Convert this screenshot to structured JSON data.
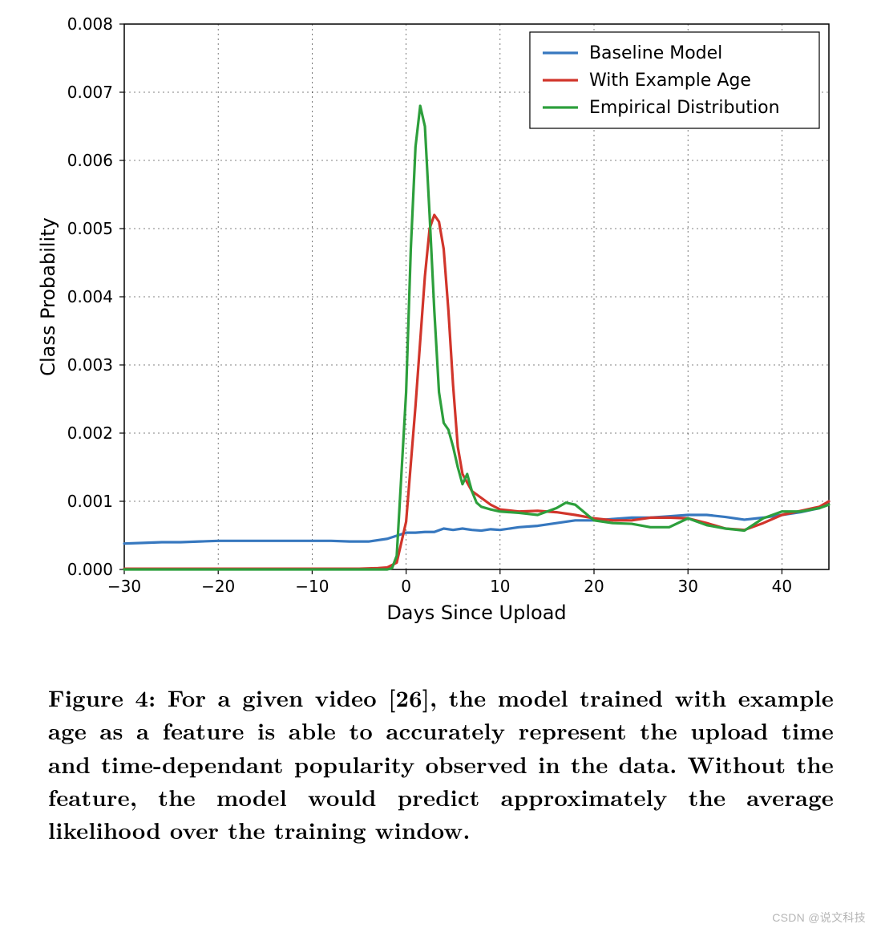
{
  "chart": {
    "type": "line",
    "background_color": "#ffffff",
    "plot_background": "#ffffff",
    "axis_color": "#000000",
    "grid_color": "#000000",
    "grid_dash": "2,4",
    "tick_length": 6,
    "xlabel": "Days Since Upload",
    "ylabel": "Class Probability",
    "label_fontsize": 24,
    "tick_fontsize": 20,
    "xlim": [
      -30,
      45
    ],
    "ylim": [
      0,
      0.008
    ],
    "xticks": [
      -30,
      -20,
      -10,
      0,
      10,
      20,
      30,
      40
    ],
    "yticks": [
      0.0,
      0.001,
      0.002,
      0.003,
      0.004,
      0.005,
      0.006,
      0.007,
      0.008
    ],
    "ytick_labels": [
      "0.000",
      "0.001",
      "0.002",
      "0.003",
      "0.004",
      "0.005",
      "0.006",
      "0.007",
      "0.008"
    ],
    "line_width": 3.2,
    "legend": {
      "position": "upper-right",
      "fontsize": 22,
      "frame_color": "#000000",
      "background": "#ffffff",
      "line_length": 44,
      "items": [
        {
          "label": "Baseline Model",
          "color": "#3778bf"
        },
        {
          "label": "With Example Age",
          "color": "#d1352b"
        },
        {
          "label": "Empirical Distribution",
          "color": "#2d9f3c"
        }
      ]
    },
    "series": [
      {
        "name": "Baseline Model",
        "color": "#3778bf",
        "x": [
          -30,
          -28,
          -26,
          -24,
          -22,
          -20,
          -18,
          -16,
          -14,
          -12,
          -10,
          -8,
          -6,
          -4,
          -2,
          0,
          1,
          2,
          3,
          4,
          5,
          6,
          7,
          8,
          9,
          10,
          12,
          14,
          16,
          18,
          20,
          22,
          24,
          26,
          28,
          30,
          32,
          34,
          36,
          38,
          40,
          42,
          44,
          45
        ],
        "y": [
          0.00038,
          0.00039,
          0.0004,
          0.0004,
          0.00041,
          0.00042,
          0.00042,
          0.00042,
          0.00042,
          0.00042,
          0.00042,
          0.00042,
          0.00041,
          0.00041,
          0.00045,
          0.00054,
          0.00054,
          0.00055,
          0.00055,
          0.0006,
          0.00058,
          0.0006,
          0.00058,
          0.00057,
          0.00059,
          0.00058,
          0.00062,
          0.00064,
          0.00068,
          0.00072,
          0.00072,
          0.00074,
          0.00076,
          0.00076,
          0.00078,
          0.0008,
          0.0008,
          0.00077,
          0.00073,
          0.00076,
          0.0008,
          0.00084,
          0.0009,
          0.001
        ]
      },
      {
        "name": "With Example Age",
        "color": "#d1352b",
        "x": [
          -30,
          -10,
          -5,
          -3,
          -2,
          -1,
          0,
          1,
          2,
          2.5,
          3,
          3.5,
          4,
          4.5,
          5,
          5.5,
          6,
          7,
          8,
          9,
          10,
          12,
          14,
          16,
          18,
          20,
          22,
          24,
          26,
          28,
          30,
          32,
          34,
          36,
          38,
          40,
          42,
          44,
          45
        ],
        "y": [
          1e-05,
          1e-05,
          1e-05,
          2e-05,
          3e-05,
          0.0001,
          0.0007,
          0.0024,
          0.0043,
          0.005,
          0.0052,
          0.0051,
          0.0047,
          0.0038,
          0.0027,
          0.0018,
          0.0014,
          0.00115,
          0.00105,
          0.00095,
          0.00088,
          0.00085,
          0.00086,
          0.00084,
          0.0008,
          0.00075,
          0.00072,
          0.00072,
          0.00076,
          0.00076,
          0.00075,
          0.00068,
          0.0006,
          0.00058,
          0.00068,
          0.0008,
          0.00086,
          0.00092,
          0.001
        ]
      },
      {
        "name": "Empirical Distribution",
        "color": "#2d9f3c",
        "x": [
          -30,
          -10,
          -5,
          -3,
          -2,
          -1.5,
          -1,
          0,
          0.5,
          1,
          1.5,
          2,
          2.5,
          3,
          3.5,
          4,
          4.5,
          5,
          5.5,
          6,
          6.5,
          7,
          7.5,
          8,
          9,
          10,
          12,
          14,
          16,
          17,
          18,
          20,
          22,
          24,
          26,
          28,
          30,
          32,
          34,
          36,
          38,
          40,
          42,
          44,
          45
        ],
        "y": [
          0.0,
          0.0,
          0.0,
          0.0,
          0.0,
          2e-05,
          0.0002,
          0.0026,
          0.0047,
          0.0062,
          0.0068,
          0.0065,
          0.0052,
          0.0038,
          0.0026,
          0.00215,
          0.00205,
          0.0018,
          0.0015,
          0.00125,
          0.0014,
          0.00115,
          0.00098,
          0.00092,
          0.00088,
          0.00085,
          0.00083,
          0.0008,
          0.0009,
          0.00098,
          0.00095,
          0.00072,
          0.00068,
          0.00067,
          0.00062,
          0.00062,
          0.00075,
          0.00065,
          0.0006,
          0.00057,
          0.00075,
          0.00085,
          0.00085,
          0.0009,
          0.00095
        ]
      }
    ]
  },
  "caption": {
    "text": "Figure 4: For a given video [26], the model trained with example age as a feature is able to accurately represent the upload time and time-dependant popularity observed in the data. Without the feature, the model would predict approximately the average likelihood over the training window.",
    "fontsize": 28.5,
    "font_weight": "bold",
    "font_family_serif": true
  },
  "watermark": {
    "text": "CSDN @说文科技",
    "color": "rgba(120,120,120,0.55)",
    "fontsize": 14
  }
}
